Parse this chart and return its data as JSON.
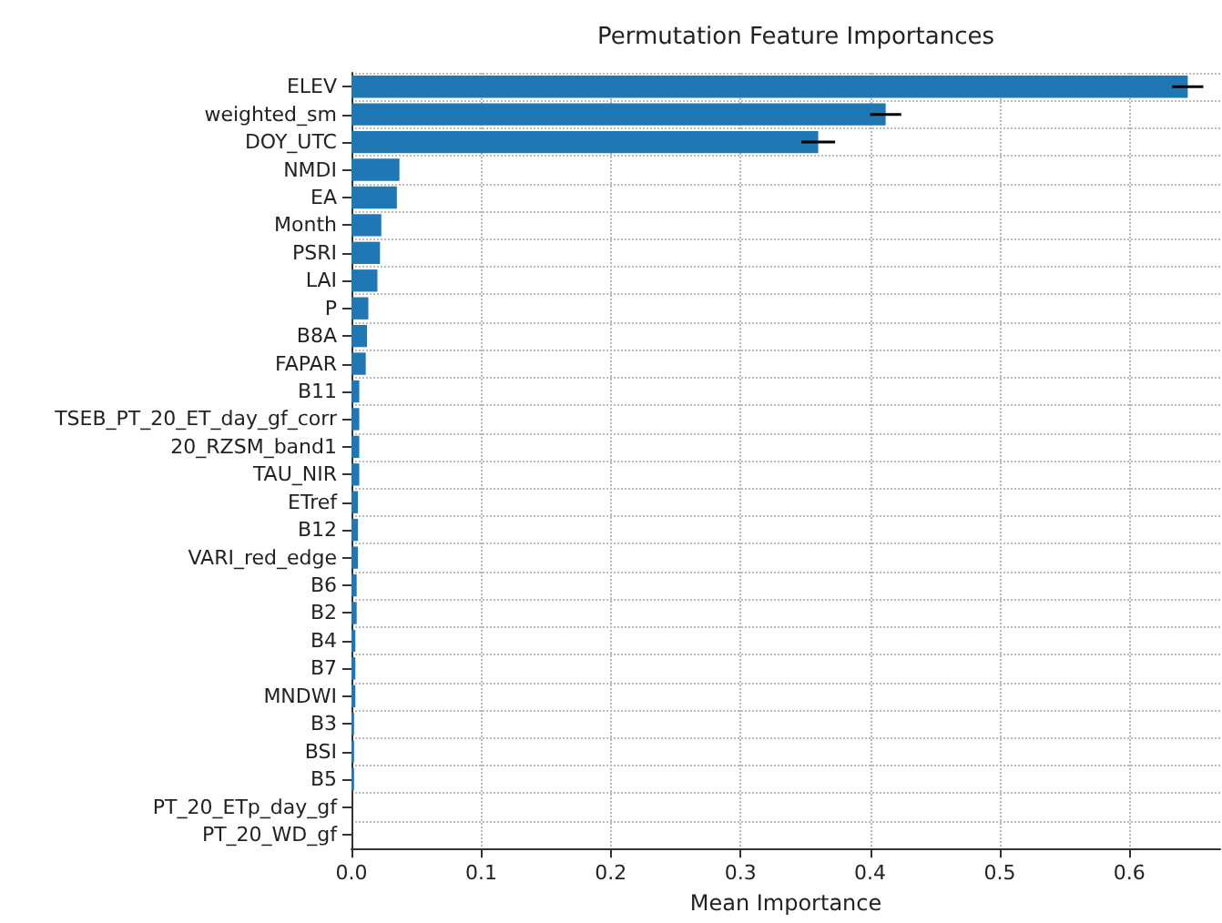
{
  "chart_data": {
    "type": "bar",
    "orientation": "horizontal",
    "title": "Permutation Feature Importances",
    "xlabel": "Mean Importance",
    "categories": [
      "ELEV",
      "weighted_sm",
      "DOY_UTC",
      "NMDI",
      "EA",
      "Month",
      "PSRI",
      "LAI",
      "P",
      "B8A",
      "FAPAR",
      "B11",
      "TSEB_PT_20_ET_day_gf_corr",
      "20_RZSM_band1",
      "TAU_NIR",
      "ETref",
      "B12",
      "VARI_red_edge",
      "B6",
      "B2",
      "B4",
      "B7",
      "MNDWI",
      "B3",
      "BSI",
      "B5",
      "PT_20_ETp_day_gf",
      "PT_20_WD_gf"
    ],
    "values": [
      0.645,
      0.412,
      0.36,
      0.037,
      0.035,
      0.023,
      0.022,
      0.02,
      0.013,
      0.012,
      0.011,
      0.006,
      0.006,
      0.006,
      0.006,
      0.005,
      0.005,
      0.005,
      0.004,
      0.004,
      0.003,
      0.003,
      0.003,
      0.002,
      0.002,
      0.002,
      0,
      0
    ],
    "errors": [
      0.012,
      0.012,
      0.013,
      null,
      null,
      null,
      null,
      null,
      null,
      null,
      null,
      null,
      null,
      null,
      null,
      null,
      null,
      null,
      null,
      null,
      null,
      null,
      null,
      null,
      null,
      null,
      null,
      null
    ],
    "color": "#1f77b4",
    "xlim": [
      0,
      0.67
    ],
    "xticks": [
      {
        "value": 0,
        "label": "0.0"
      },
      0.1,
      0.2,
      0.3,
      0.4,
      0.5,
      0.6
    ],
    "grid": true
  }
}
